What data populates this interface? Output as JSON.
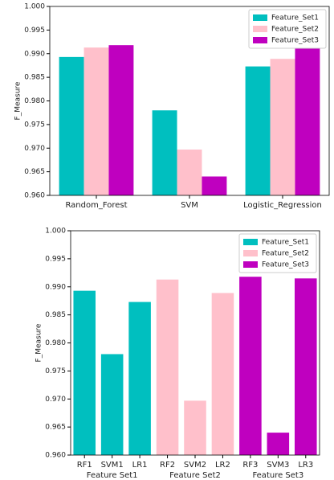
{
  "chart_data": [
    {
      "type": "bar",
      "y_label": "F_Measure",
      "categories": [
        "Random_Forest",
        "SVM",
        "Logistic_Regression"
      ],
      "series": [
        {
          "name": "Feature_Set1",
          "color": "#00bfbf",
          "values": [
            0.9893,
            0.978,
            0.9873
          ]
        },
        {
          "name": "Feature_Set2",
          "color": "#ffc0cb",
          "values": [
            0.9913,
            0.9697,
            0.9889
          ]
        },
        {
          "name": "Feature_Set3",
          "color": "#bf00bf",
          "values": [
            0.9918,
            0.964,
            0.9915
          ]
        }
      ],
      "ylim": [
        0.96,
        1.0
      ],
      "yticks": [
        {
          "value": 0.96,
          "label": "0.960"
        },
        0.965,
        {
          "value": 0.97,
          "label": "0.970"
        },
        0.975,
        {
          "value": 0.98,
          "label": "0.980"
        },
        0.985,
        {
          "value": 0.99,
          "label": "0.990"
        },
        0.995,
        {
          "value": 1.0,
          "label": "1.000"
        }
      ],
      "legend": "upper-right"
    },
    {
      "type": "bar",
      "y_label": "F_Measure",
      "categories": [
        "RF1",
        "SVM1",
        "LR1",
        "RF2",
        "SVM2",
        "LR2",
        "RF3",
        "SVM3",
        "LR3"
      ],
      "group_labels": [
        "Feature Set1",
        "Feature Set2",
        "Feature Set3"
      ],
      "series": [
        {
          "name": "Feature_Set1",
          "color": "#00bfbf",
          "values": [
            0.9893,
            0.978,
            0.9873,
            null,
            null,
            null,
            null,
            null,
            null
          ]
        },
        {
          "name": "Feature_Set2",
          "color": "#ffc0cb",
          "values": [
            null,
            null,
            null,
            0.9913,
            0.9697,
            0.9889,
            null,
            null,
            null
          ]
        },
        {
          "name": "Feature_Set3",
          "color": "#bf00bf",
          "values": [
            null,
            null,
            null,
            null,
            null,
            null,
            0.9918,
            0.964,
            0.9915
          ]
        }
      ],
      "ylim": [
        0.96,
        1.0
      ],
      "yticks": [
        {
          "value": 0.96,
          "label": "0.960"
        },
        0.965,
        {
          "value": 0.97,
          "label": "0.970"
        },
        0.975,
        {
          "value": 0.98,
          "label": "0.980"
        },
        0.985,
        {
          "value": 0.99,
          "label": "0.990"
        },
        0.995,
        {
          "value": 1.0,
          "label": "1.000"
        }
      ],
      "legend": "upper-right"
    }
  ]
}
